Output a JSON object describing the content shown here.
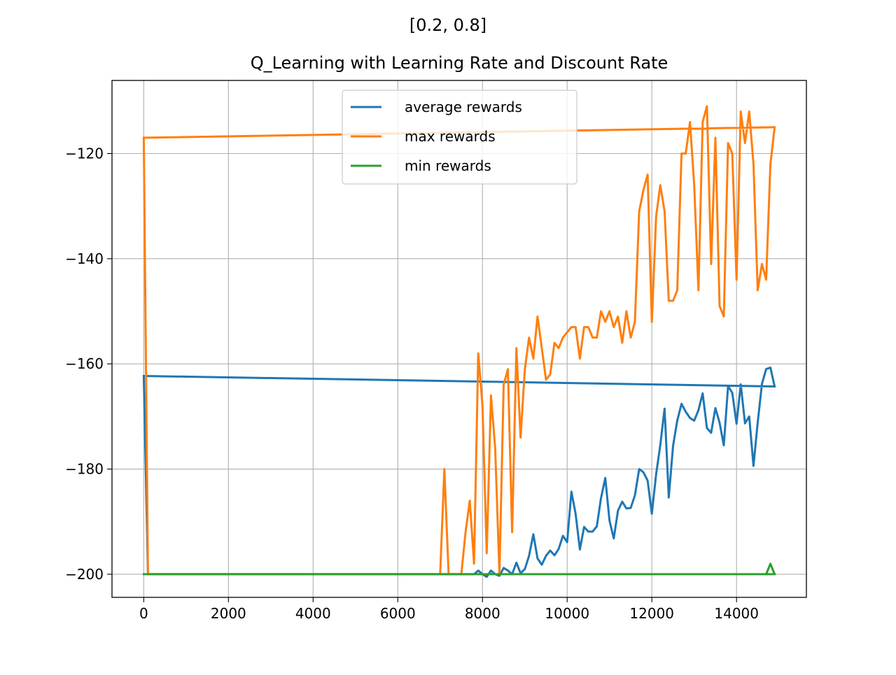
{
  "chart_data": {
    "type": "line",
    "suptitle": "[0.2, 0.8]",
    "title": "Q_Learning with Learning Rate and Discount Rate",
    "xlabel": "",
    "ylabel": "",
    "xlim": [
      -750,
      15650
    ],
    "ylim": [
      -204.4,
      -106.1
    ],
    "xticks": [
      0,
      2000,
      4000,
      6000,
      8000,
      10000,
      12000,
      14000
    ],
    "xtick_labels": [
      "0",
      "2000",
      "4000",
      "6000",
      "8000",
      "10000",
      "12000",
      "14000"
    ],
    "yticks": [
      -200,
      -180,
      -160,
      -140,
      -120
    ],
    "ytick_labels": [
      "−200",
      "−180",
      "−160",
      "−140",
      "−120"
    ],
    "grid": true,
    "legend_position": "upper-center",
    "series": [
      {
        "name": "average rewards",
        "color": "#1f77b4",
        "x": [
          0,
          100,
          7000,
          7100,
          7200,
          7300,
          7400,
          7500,
          7600,
          7700,
          7800,
          7900,
          8000,
          8100,
          8200,
          8300,
          8400,
          8500,
          8600,
          8700,
          8800,
          8900,
          9000,
          9100,
          9200,
          9300,
          9400,
          9500,
          9600,
          9700,
          9800,
          9900,
          10000,
          10100,
          10200,
          10300,
          10400,
          10500,
          10600,
          10700,
          10800,
          10900,
          11000,
          11100,
          11200,
          11300,
          11400,
          11500,
          11600,
          11700,
          11800,
          11900,
          12000,
          12100,
          12200,
          12300,
          12400,
          12500,
          12600,
          12700,
          12800,
          12900,
          13000,
          13100,
          13200,
          13300,
          13400,
          13500,
          13600,
          13700,
          13800,
          13900,
          14000,
          14100,
          14200,
          14300,
          14400,
          14500,
          14600,
          14700,
          14800,
          14900,
          0,
          14900
        ],
        "y": [
          -162.3,
          -200,
          -200,
          -200,
          -200,
          -200,
          -200,
          -200,
          -200,
          -200,
          -200,
          -199.3,
          -200,
          -200.5,
          -199.3,
          -200,
          -200.3,
          -198.8,
          -199.3,
          -200,
          -197.8,
          -199.8,
          -199,
          -196.5,
          -192.4,
          -197,
          -198.2,
          -196.5,
          -195.5,
          -196.4,
          -195.2,
          -192.7,
          -193.9,
          -184.3,
          -188.5,
          -195.3,
          -191,
          -191.9,
          -191.9,
          -190.9,
          -185.5,
          -181.7,
          -189.8,
          -193.2,
          -187.9,
          -186.2,
          -187.5,
          -187.4,
          -185,
          -180,
          -180.6,
          -182.2,
          -188.5,
          -181,
          -175.4,
          -168.5,
          -185.4,
          -175.6,
          -170.8,
          -167.6,
          -169.1,
          -170.3,
          -170.8,
          -168.8,
          -165.6,
          -172.2,
          -173.1,
          -168.4,
          -171.2,
          -175.5,
          -164.2,
          -165.5,
          -171.4,
          -163.9,
          -171.3,
          -170,
          -179.4,
          -171.2,
          -163.8,
          -161,
          -160.7,
          -164.3,
          -162.3,
          -164.3
        ]
      },
      {
        "name": "max rewards",
        "color": "#ff7f0e",
        "x": [
          0,
          100,
          7000,
          7100,
          7200,
          7300,
          7400,
          7500,
          7600,
          7700,
          7800,
          7900,
          8000,
          8100,
          8200,
          8300,
          8400,
          8500,
          8600,
          8700,
          8800,
          8900,
          9000,
          9100,
          9200,
          9300,
          9400,
          9500,
          9600,
          9700,
          9800,
          9900,
          10000,
          10100,
          10200,
          10300,
          10400,
          10500,
          10600,
          10700,
          10800,
          10900,
          11000,
          11100,
          11200,
          11300,
          11400,
          11500,
          11600,
          11700,
          11800,
          11900,
          12000,
          12100,
          12200,
          12300,
          12400,
          12500,
          12600,
          12700,
          12800,
          12900,
          13000,
          13100,
          13200,
          13300,
          13400,
          13500,
          13600,
          13700,
          13800,
          13900,
          14000,
          14100,
          14200,
          14300,
          14400,
          14500,
          14600,
          14700,
          14800,
          14900,
          0,
          14900
        ],
        "y": [
          -117,
          -200,
          -200,
          -180,
          -200,
          -200,
          -200,
          -200,
          -192,
          -186,
          -198,
          -158,
          -168,
          -196,
          -166,
          -176,
          -200,
          -164,
          -161,
          -192,
          -157,
          -174,
          -161,
          -155,
          -159,
          -151,
          -157,
          -163,
          -162,
          -156,
          -157,
          -155,
          -154,
          -153,
          -153,
          -159,
          -153,
          -153,
          -155,
          -155,
          -150,
          -152,
          -150,
          -153,
          -151,
          -156,
          -150,
          -155,
          -152,
          -131,
          -127,
          -124,
          -152,
          -132,
          -126,
          -131,
          -148,
          -148,
          -146,
          -120,
          -120,
          -114,
          -126,
          -146,
          -114,
          -111,
          -141,
          -117,
          -149,
          -151,
          -118,
          -120,
          -144,
          -112,
          -118,
          -112,
          -122,
          -146,
          -141,
          -144,
          -122,
          -115,
          -117,
          -115
        ]
      },
      {
        "name": "min rewards",
        "color": "#2ca02c",
        "x": [
          0,
          14600,
          14700,
          14800,
          14900,
          0,
          14900
        ],
        "y": [
          -200,
          -200,
          -200,
          -198,
          -200,
          -200,
          -200
        ]
      }
    ]
  }
}
